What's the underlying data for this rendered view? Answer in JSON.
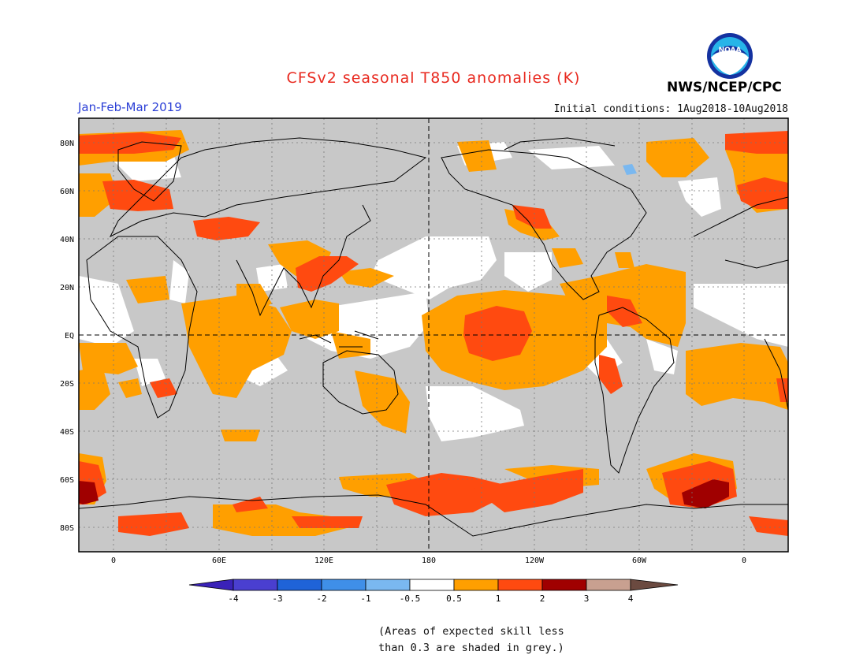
{
  "title": "CFSv2 seasonal T850 anomalies (K)",
  "season": "Jan-Feb-Mar 2019",
  "initial_conditions": "Initial conditions: 1Aug2018-10Aug2018",
  "agency": "NWS/NCEP/CPC",
  "logo_text": "NOAA",
  "note": {
    "line1": "(Areas of expected skill less",
    "line2": "than 0.3 are shaded in grey.)"
  },
  "map": {
    "lat_ticks": [
      "80N",
      "60N",
      "40N",
      "20N",
      "EQ",
      "20S",
      "40S",
      "60S",
      "80S"
    ],
    "lon_ticks": [
      "0",
      "60E",
      "120E",
      "180",
      "120W",
      "60W",
      "0"
    ]
  },
  "colorbar": {
    "labels": [
      "-4",
      "-3",
      "-2",
      "-1",
      "-0.5",
      "0.5",
      "1",
      "2",
      "3",
      "4"
    ],
    "colors": [
      "#3a22b8",
      "#4a3fd0",
      "#1f63d8",
      "#3f8fe8",
      "#7ab8f0",
      "#ffffff",
      "#ff9f00",
      "#ff4a10",
      "#a00000",
      "#c8a090",
      "#6b4a40"
    ]
  },
  "colors": {
    "grey": "#c8c8c8",
    "white": "#ffffff",
    "anom_0_5_1": "#ff9f00",
    "anom_1_2": "#ff4a10",
    "anom_2_3": "#a00000",
    "anom_neg": "#7ab8f0"
  }
}
